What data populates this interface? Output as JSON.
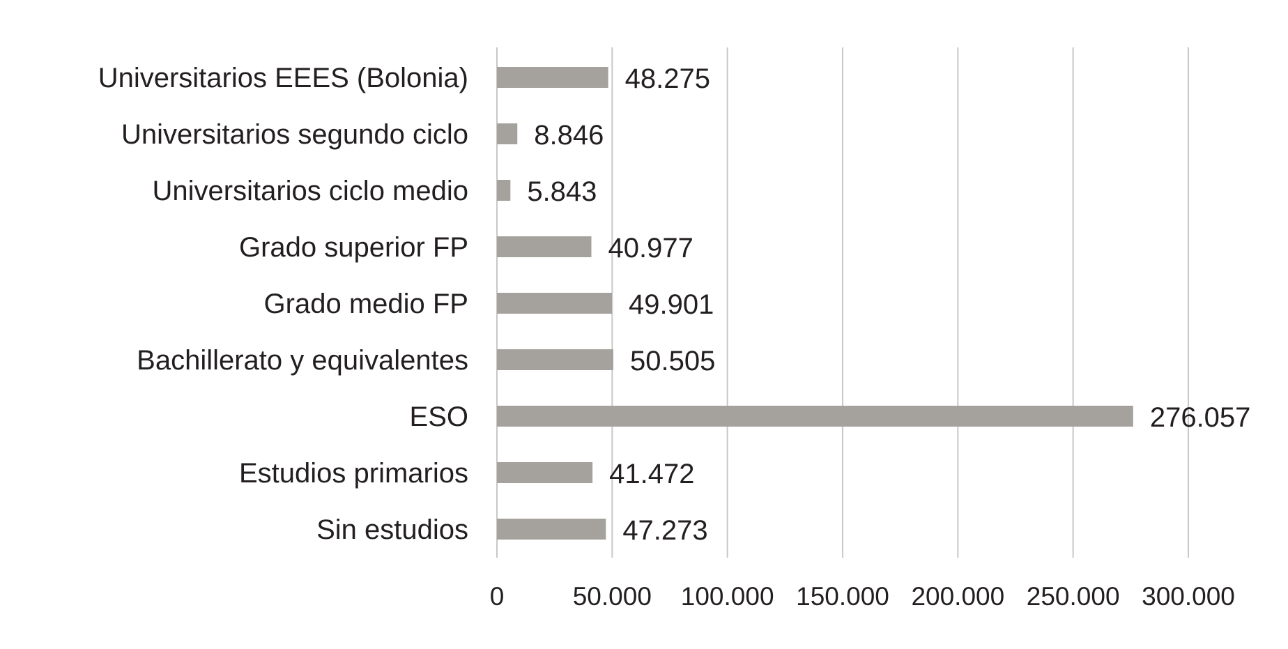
{
  "chart_data": {
    "type": "bar",
    "orientation": "horizontal",
    "title": "",
    "xlabel": "",
    "ylabel": "",
    "categories": [
      "Universitarios EEES (Bolonia)",
      "Universitarios segundo ciclo",
      "Universitarios ciclo medio",
      "Grado superior FP",
      "Grado medio FP",
      "Bachillerato y equivalentes",
      "ESO",
      "Estudios primarios",
      "Sin estudios"
    ],
    "values": [
      48275,
      8846,
      5843,
      40977,
      49901,
      50505,
      276057,
      41472,
      47273
    ],
    "value_labels": [
      "48.275",
      "8.846",
      "5.843",
      "40.977",
      "49.901",
      "50.505",
      "276.057",
      "41.472",
      "47.273"
    ],
    "xlim": [
      0,
      300000
    ],
    "ticks": [
      0,
      50000,
      100000,
      150000,
      200000,
      250000,
      300000
    ],
    "tick_labels": [
      "0",
      "50.000",
      "100.000",
      "150.000",
      "200.000",
      "250.000",
      "300.000"
    ],
    "grid": "vertical",
    "legend": "none",
    "colors": {
      "bar": "#a5a29d",
      "grid": "#c8c8c8",
      "text": "#231f20"
    }
  }
}
